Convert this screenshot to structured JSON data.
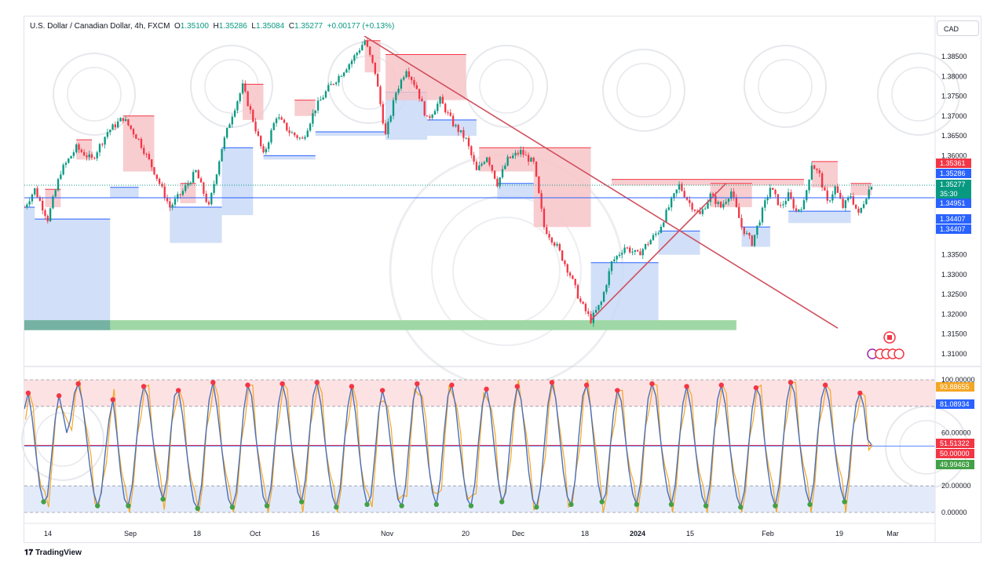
{
  "header": {
    "symbol": "U.S. Dollar / Canadian Dollar, 4h, FXCM",
    "open_label": "O",
    "open": "1.35100",
    "high_label": "H",
    "high": "1.35286",
    "low_label": "L",
    "low": "1.35084",
    "close_label": "C",
    "close": "1.35277",
    "change": "+0.00177 (+0.13%)"
  },
  "currency_button": "CAD",
  "brand": "TradingView",
  "colors": {
    "up": "#089981",
    "down": "#f23645",
    "supply_zone": "#f7c4c8",
    "demand_zone": "#c9d9f7",
    "green_zone": "#9fd8a6",
    "trendline": "#d0505e",
    "stoch_k": "#4a6fb8",
    "stoch_d": "#f5a623",
    "overbought": "#f23645",
    "oversold": "#43a047"
  },
  "chart_data": [
    {
      "type": "candlestick",
      "x_ticks": [
        "14",
        "Sep",
        "18",
        "Oct",
        "16",
        "Nov",
        "20",
        "Dec",
        "18",
        "2024",
        "15",
        "Feb",
        "19",
        "Mar"
      ],
      "y_ticks": [
        "1.38500",
        "1.38000",
        "1.37500",
        "1.37000",
        "1.36500",
        "1.36000",
        "1.33500",
        "1.33000",
        "1.32500",
        "1.32000",
        "1.31500",
        "1.31000"
      ],
      "ylim": [
        1.307,
        1.393
      ],
      "price_series": [
        [
          0,
          1.347
        ],
        [
          4,
          1.3515
        ],
        [
          9,
          1.344
        ],
        [
          14,
          1.356
        ],
        [
          20,
          1.362
        ],
        [
          26,
          1.359
        ],
        [
          32,
          1.366
        ],
        [
          38,
          1.3695
        ],
        [
          44,
          1.364
        ],
        [
          50,
          1.356
        ],
        [
          56,
          1.347
        ],
        [
          61,
          1.351
        ],
        [
          66,
          1.356
        ],
        [
          71,
          1.347
        ],
        [
          76,
          1.362
        ],
        [
          80,
          1.3705
        ],
        [
          84,
          1.3775
        ],
        [
          88,
          1.369
        ],
        [
          92,
          1.36
        ],
        [
          97,
          1.37
        ],
        [
          102,
          1.366
        ],
        [
          107,
          1.364
        ],
        [
          112,
          1.372
        ],
        [
          117,
          1.377
        ],
        [
          121,
          1.38
        ],
        [
          126,
          1.384
        ],
        [
          131,
          1.389
        ],
        [
          135,
          1.381
        ],
        [
          139,
          1.365
        ],
        [
          143,
          1.376
        ],
        [
          147,
          1.382
        ],
        [
          151,
          1.377
        ],
        [
          155,
          1.369
        ],
        [
          160,
          1.374
        ],
        [
          165,
          1.368
        ],
        [
          170,
          1.364
        ],
        [
          174,
          1.356
        ],
        [
          178,
          1.36
        ],
        [
          182,
          1.353
        ],
        [
          186,
          1.359
        ],
        [
          191,
          1.361
        ],
        [
          196,
          1.358
        ],
        [
          200,
          1.342
        ],
        [
          205,
          1.337
        ],
        [
          210,
          1.33
        ],
        [
          214,
          1.323
        ],
        [
          218,
          1.3185
        ],
        [
          222,
          1.323
        ],
        [
          226,
          1.333
        ],
        [
          231,
          1.337
        ],
        [
          236,
          1.335
        ],
        [
          240,
          1.338
        ],
        [
          244,
          1.341
        ],
        [
          248,
          1.347
        ],
        [
          252,
          1.3525
        ],
        [
          256,
          1.348
        ],
        [
          260,
          1.345
        ],
        [
          264,
          1.35
        ],
        [
          268,
          1.347
        ],
        [
          272,
          1.351
        ],
        [
          276,
          1.342
        ],
        [
          280,
          1.338
        ],
        [
          284,
          1.346
        ],
        [
          287,
          1.352
        ],
        [
          291,
          1.347
        ],
        [
          294,
          1.35
        ],
        [
          297,
          1.346
        ],
        [
          300,
          1.348
        ],
        [
          303,
          1.358
        ],
        [
          306,
          1.355
        ],
        [
          309,
          1.348
        ],
        [
          312,
          1.352
        ],
        [
          315,
          1.347
        ],
        [
          318,
          1.35
        ],
        [
          321,
          1.345
        ],
        [
          324,
          1.35
        ],
        [
          326,
          1.3528
        ]
      ],
      "supply_zones": [
        {
          "from_bar": 8,
          "to_bar": 14,
          "top": 1.3515,
          "bottom": 1.347
        },
        {
          "from_bar": 20,
          "to_bar": 26,
          "top": 1.364,
          "bottom": 1.359
        },
        {
          "from_bar": 38,
          "to_bar": 50,
          "top": 1.37,
          "bottom": 1.356
        },
        {
          "from_bar": 60,
          "to_bar": 66,
          "top": 1.353,
          "bottom": 1.348
        },
        {
          "from_bar": 84,
          "to_bar": 92,
          "top": 1.378,
          "bottom": 1.369
        },
        {
          "from_bar": 104,
          "to_bar": 112,
          "top": 1.374,
          "bottom": 1.37
        },
        {
          "from_bar": 131,
          "to_bar": 137,
          "top": 1.389,
          "bottom": 1.381
        },
        {
          "from_bar": 139,
          "to_bar": 170,
          "top": 1.3855,
          "bottom": 1.374
        },
        {
          "from_bar": 175,
          "to_bar": 196,
          "top": 1.362,
          "bottom": 1.356
        },
        {
          "from_bar": 196,
          "to_bar": 218,
          "top": 1.362,
          "bottom": 1.342
        },
        {
          "from_bar": 226,
          "to_bar": 300,
          "top": 1.354,
          "bottom": 1.3525
        },
        {
          "from_bar": 264,
          "to_bar": 280,
          "top": 1.353,
          "bottom": 1.347
        },
        {
          "from_bar": 303,
          "to_bar": 313,
          "top": 1.3585,
          "bottom": 1.352
        },
        {
          "from_bar": 318,
          "to_bar": 326,
          "top": 1.353,
          "bottom": 1.35
        }
      ],
      "demand_zones": [
        {
          "from_bar": 0,
          "to_bar": 4,
          "top": 1.347,
          "bottom": 1.3185
        },
        {
          "from_bar": 4,
          "to_bar": 33,
          "top": 1.344,
          "bottom": 1.3185
        },
        {
          "from_bar": 33,
          "to_bar": 44,
          "top": 1.352,
          "bottom": 1.3495
        },
        {
          "from_bar": 56,
          "to_bar": 76,
          "top": 1.347,
          "bottom": 1.338
        },
        {
          "from_bar": 76,
          "to_bar": 88,
          "top": 1.362,
          "bottom": 1.345
        },
        {
          "from_bar": 92,
          "to_bar": 112,
          "top": 1.36,
          "bottom": 1.359
        },
        {
          "from_bar": 112,
          "to_bar": 139,
          "top": 1.365,
          "bottom": 1.366
        },
        {
          "from_bar": 139,
          "to_bar": 155,
          "top": 1.376,
          "bottom": 1.364
        },
        {
          "from_bar": 155,
          "to_bar": 174,
          "top": 1.369,
          "bottom": 1.365
        },
        {
          "from_bar": 182,
          "to_bar": 196,
          "top": 1.353,
          "bottom": 1.349
        },
        {
          "from_bar": 218,
          "to_bar": 244,
          "top": 1.333,
          "bottom": 1.3185
        },
        {
          "from_bar": 244,
          "to_bar": 260,
          "top": 1.341,
          "bottom": 1.335
        },
        {
          "from_bar": 276,
          "to_bar": 287,
          "top": 1.342,
          "bottom": 1.337
        },
        {
          "from_bar": 294,
          "to_bar": 318,
          "top": 1.346,
          "bottom": 1.343
        }
      ],
      "green_zone": {
        "from_bar": 0,
        "to_bar": 274,
        "top": 1.3185,
        "bottom": 1.316
      },
      "trendlines": [
        {
          "from": [
            130,
            1.3905
          ],
          "to": [
            313,
            1.3165
          ]
        },
        {
          "from": [
            218,
            1.3185
          ],
          "to": [
            270,
            1.353
          ]
        }
      ],
      "price_tags": [
        {
          "label": "1.35361",
          "color": "#f23645"
        },
        {
          "label": "1.35286",
          "color": "#2962ff"
        },
        {
          "label": "1.35277",
          "color": "#089981"
        },
        {
          "label": "35:30",
          "color": "#089981"
        },
        {
          "label": "1.34951",
          "color": "#2962ff"
        },
        {
          "label": "1.34407",
          "color": "#2962ff"
        },
        {
          "label": "1.34407",
          "color": "#2962ff"
        }
      ],
      "flag_icons": [
        "canada-flag-icon",
        "us-flag-icon"
      ]
    },
    {
      "type": "line",
      "indicator": "stochastic",
      "y_ticks": [
        "100.00000",
        "80.00000",
        "60.00000",
        "20.00000",
        "0.00000"
      ],
      "ylim": [
        0,
        100
      ],
      "overbought_band": [
        80,
        100
      ],
      "oversold_band": [
        0,
        20
      ],
      "midline": 50,
      "value_tags": [
        {
          "label": "93.88655",
          "color": "#f5a623"
        },
        {
          "label": "81.08934",
          "color": "#2962ff"
        },
        {
          "label": "51.51322",
          "color": "#f23645"
        },
        {
          "label": "50.00000",
          "color": "#f23645"
        },
        {
          "label": "49.99463",
          "color": "#43a047"
        }
      ],
      "series": [
        {
          "values": [
            78,
            90,
            72,
            45,
            20,
            8,
            12,
            40,
            70,
            88,
            75,
            60,
            70,
            90,
            97,
            85,
            60,
            35,
            15,
            5,
            15,
            45,
            70,
            85,
            60,
            30,
            10,
            5,
            20,
            50,
            80,
            95,
            88,
            65,
            40,
            20,
            10,
            25,
            60,
            88,
            92,
            75,
            50,
            25,
            8,
            3,
            20,
            55,
            85,
            98,
            80,
            55,
            30,
            10,
            4,
            15,
            45,
            78,
            96,
            88,
            60,
            35,
            12,
            5,
            18,
            50,
            82,
            97,
            85,
            60,
            35,
            15,
            8,
            25,
            58,
            88,
            98,
            82,
            55,
            30,
            12,
            4,
            18,
            50,
            80,
            95,
            75,
            45,
            20,
            6,
            12,
            42,
            75,
            92,
            80,
            55,
            30,
            10,
            5,
            20,
            55,
            85,
            97,
            88,
            62,
            35,
            15,
            6,
            25,
            60,
            88,
            96,
            80,
            52,
            28,
            10,
            5,
            22,
            55,
            82,
            93,
            78,
            50,
            25,
            8,
            15,
            48,
            78,
            95,
            85,
            60,
            30,
            10,
            4,
            18,
            50,
            82,
            98,
            86,
            58,
            30,
            12,
            6,
            24,
            58,
            88,
            96,
            80,
            50,
            22,
            8,
            14,
            45,
            75,
            92,
            84,
            58,
            32,
            14,
            6,
            22,
            56,
            86,
            97,
            88,
            60,
            35,
            16,
            6,
            20,
            52,
            82,
            95,
            80,
            55,
            30,
            12,
            5,
            20,
            55,
            85,
            96,
            82,
            56,
            30,
            12,
            4,
            16,
            48,
            78,
            94,
            88,
            60,
            34,
            14,
            5,
            20,
            52,
            84,
            98,
            90,
            62,
            36,
            16,
            6,
            22,
            58,
            86,
            96,
            84,
            60,
            36,
            18,
            8,
            26,
            58,
            82,
            90,
            80,
            55,
            51
          ]
        }
      ]
    }
  ]
}
